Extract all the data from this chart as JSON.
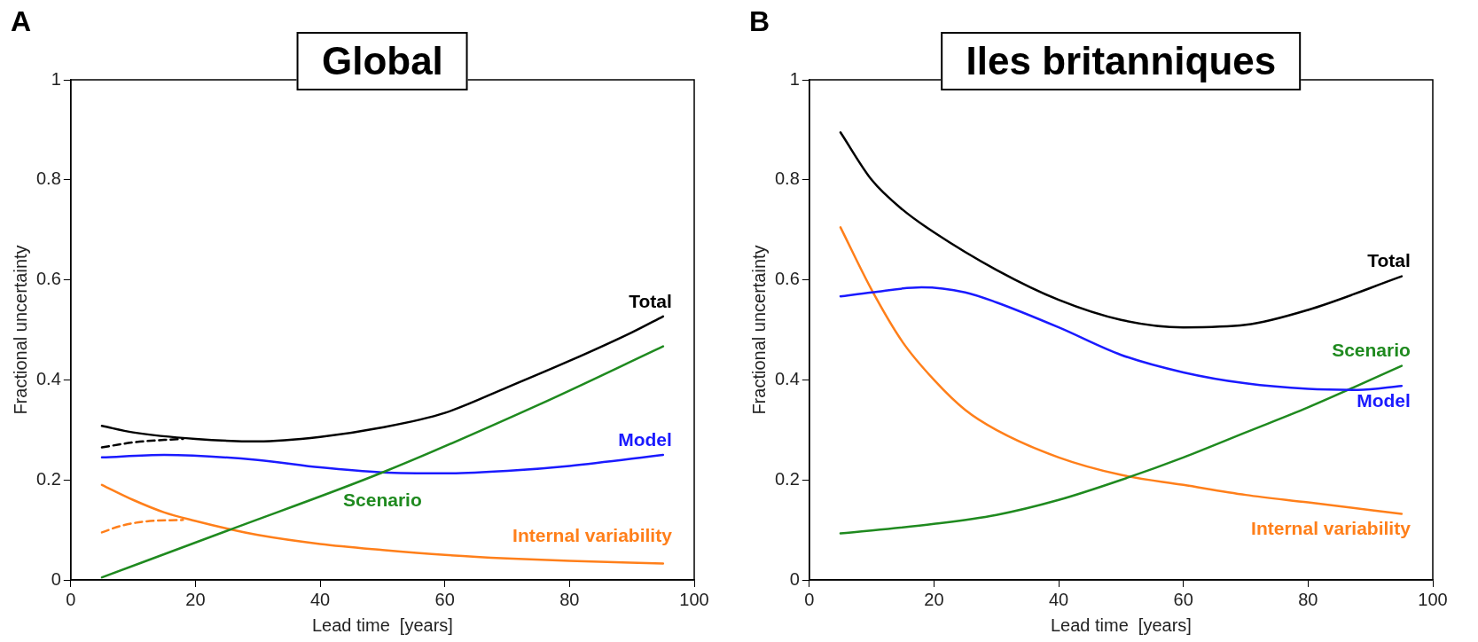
{
  "chart_data": [
    {
      "type": "line",
      "title": "Global",
      "xlabel": "Lead time  [years]",
      "ylabel": "Fractional uncertainty",
      "annotations": [
        "A"
      ],
      "legend": false,
      "grid": false,
      "xlim": [
        0,
        100
      ],
      "xticks": [
        0,
        20,
        40,
        60,
        80,
        100
      ],
      "ylim": [
        0,
        1
      ],
      "yticks": [
        0,
        0.2,
        0.4,
        0.6,
        0.8,
        1
      ],
      "series": [
        {
          "name": "Total",
          "color": "#000000",
          "x": [
            5,
            10,
            20,
            30,
            40,
            50,
            60,
            70,
            80,
            90,
            95
          ],
          "values": [
            0.308,
            0.295,
            0.282,
            0.277,
            0.286,
            0.305,
            0.334,
            0.385,
            0.438,
            0.495,
            0.527
          ]
        },
        {
          "color": "#000000",
          "line_style": "dashed",
          "x": [
            5,
            10,
            15,
            18
          ],
          "values": [
            0.265,
            0.275,
            0.28,
            0.282
          ]
        },
        {
          "name": "Scenario",
          "color": "#1f8a1f",
          "x": [
            5,
            25,
            50,
            75,
            95
          ],
          "values": [
            0.005,
            0.098,
            0.215,
            0.35,
            0.467
          ]
        },
        {
          "name": "Model",
          "color": "#1a1aff",
          "x": [
            5,
            15,
            30,
            40,
            50,
            60,
            70,
            80,
            95
          ],
          "values": [
            0.245,
            0.25,
            0.24,
            0.225,
            0.215,
            0.213,
            0.218,
            0.228,
            0.25
          ]
        },
        {
          "name": "Internal variability",
          "color": "#ff7f1a",
          "x": [
            5,
            10,
            15,
            20,
            25,
            30,
            40,
            50,
            60,
            70,
            80,
            95
          ],
          "values": [
            0.19,
            0.16,
            0.135,
            0.118,
            0.103,
            0.09,
            0.072,
            0.06,
            0.05,
            0.043,
            0.038,
            0.033
          ]
        },
        {
          "color": "#ff7f1a",
          "line_style": "dashed",
          "x": [
            5,
            8,
            12,
            18
          ],
          "values": [
            0.095,
            0.108,
            0.117,
            0.12
          ]
        }
      ]
    },
    {
      "type": "line",
      "title": "Iles britanniques",
      "xlabel": "Lead time  [years]",
      "ylabel": "Fractional uncertainty",
      "annotations": [
        "B"
      ],
      "legend": false,
      "grid": false,
      "xlim": [
        0,
        100
      ],
      "xticks": [
        0,
        20,
        40,
        60,
        80,
        100
      ],
      "ylim": [
        0,
        1
      ],
      "yticks": [
        0,
        0.2,
        0.4,
        0.6,
        0.8,
        1
      ],
      "series": [
        {
          "name": "Total",
          "color": "#000000",
          "x": [
            5,
            10,
            15,
            20,
            30,
            40,
            50,
            60,
            70,
            80,
            95
          ],
          "values": [
            0.895,
            0.8,
            0.74,
            0.695,
            0.62,
            0.56,
            0.52,
            0.505,
            0.51,
            0.54,
            0.607
          ]
        },
        {
          "name": "Model",
          "color": "#1a1aff",
          "x": [
            5,
            10,
            18,
            25,
            30,
            40,
            50,
            60,
            70,
            80,
            88,
            95
          ],
          "values": [
            0.567,
            0.575,
            0.585,
            0.575,
            0.555,
            0.505,
            0.45,
            0.415,
            0.393,
            0.382,
            0.38,
            0.388
          ]
        },
        {
          "name": "Scenario",
          "color": "#1f8a1f",
          "x": [
            5,
            20,
            30,
            40,
            50,
            60,
            70,
            80,
            95
          ],
          "values": [
            0.093,
            0.112,
            0.13,
            0.16,
            0.2,
            0.245,
            0.295,
            0.345,
            0.428
          ]
        },
        {
          "name": "Internal variability",
          "color": "#ff7f1a",
          "x": [
            5,
            10,
            15,
            20,
            25,
            30,
            40,
            50,
            60,
            70,
            80,
            95
          ],
          "values": [
            0.705,
            0.58,
            0.475,
            0.4,
            0.34,
            0.3,
            0.245,
            0.21,
            0.19,
            0.17,
            0.155,
            0.132
          ]
        }
      ]
    }
  ]
}
